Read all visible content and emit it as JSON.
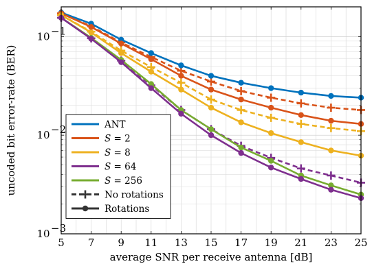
{
  "chart_data": {
    "type": "line",
    "xlabel": "average SNR per receive antenna [dB]",
    "ylabel": "uncoded bit error-rate (BER)",
    "x": [
      5,
      7,
      9,
      11,
      13,
      15,
      17,
      19,
      21,
      23,
      25
    ],
    "x_ticks": [
      "5",
      "7",
      "9",
      "11",
      "13",
      "15",
      "17",
      "19",
      "21",
      "23",
      "25"
    ],
    "xlim": [
      5,
      25
    ],
    "ylim": [
      0.001,
      0.2
    ],
    "yscale": "log",
    "y_ticks": [
      {
        "value": 0.1,
        "base": "10",
        "exp": "−1"
      },
      {
        "value": 0.01,
        "base": "10",
        "exp": "−2"
      },
      {
        "value": 0.001,
        "base": "10",
        "exp": "−3"
      }
    ],
    "grid": true,
    "legend_position": "bottom-left",
    "series": [
      {
        "name": "ANT",
        "color": "#0072bd",
        "style": "solid",
        "marker": "circle",
        "values": [
          0.175,
          0.135,
          0.093,
          0.068,
          0.051,
          0.04,
          0.034,
          0.03,
          0.027,
          0.025,
          0.024
        ]
      },
      {
        "name": "S = 2",
        "color": "#d95319",
        "style": "solid",
        "marker": "circle",
        "values": [
          0.172,
          0.125,
          0.085,
          0.059,
          0.04,
          0.029,
          0.023,
          0.019,
          0.016,
          0.014,
          0.013
        ]
      },
      {
        "name": "S = 2",
        "color": "#d95319",
        "style": "dashed",
        "marker": "plus",
        "values": [
          0.172,
          0.127,
          0.087,
          0.062,
          0.045,
          0.035,
          0.028,
          0.024,
          0.021,
          0.019,
          0.018
        ]
      },
      {
        "name": "S = 8",
        "color": "#edb120",
        "style": "solid",
        "marker": "circle",
        "values": [
          0.165,
          0.11,
          0.068,
          0.044,
          0.029,
          0.019,
          0.0135,
          0.0105,
          0.0085,
          0.007,
          0.0062
        ]
      },
      {
        "name": "S = 8",
        "color": "#edb120",
        "style": "dashed",
        "marker": "plus",
        "values": [
          0.165,
          0.112,
          0.072,
          0.049,
          0.034,
          0.023,
          0.018,
          0.015,
          0.013,
          0.0118,
          0.011
        ]
      },
      {
        "name": "S = 64",
        "color": "#7e2f8e",
        "style": "solid",
        "marker": "circle",
        "values": [
          0.155,
          0.095,
          0.055,
          0.03,
          0.0165,
          0.01,
          0.0066,
          0.0047,
          0.0036,
          0.0028,
          0.0023
        ]
      },
      {
        "name": "S = 64",
        "color": "#7e2f8e",
        "style": "dashed",
        "marker": "plus",
        "values": [
          0.155,
          0.096,
          0.057,
          0.032,
          0.018,
          0.0115,
          0.0078,
          0.0059,
          0.0046,
          0.0039,
          0.0033
        ]
      },
      {
        "name": "S = 256",
        "color": "#77ac30",
        "style": "solid",
        "marker": "circle",
        "values": [
          0.155,
          0.097,
          0.058,
          0.033,
          0.018,
          0.0115,
          0.0075,
          0.0055,
          0.0039,
          0.0031,
          0.0025
        ]
      }
    ],
    "legend": [
      {
        "prefix": "",
        "var": "",
        "value": "ANT",
        "color": "#0072bd",
        "style": "solid",
        "marker": "none"
      },
      {
        "prefix": "",
        "var": "S",
        "value": " = 2",
        "color": "#d95319",
        "style": "solid",
        "marker": "none"
      },
      {
        "prefix": "",
        "var": "S",
        "value": " = 8",
        "color": "#edb120",
        "style": "solid",
        "marker": "none"
      },
      {
        "prefix": "",
        "var": "S",
        "value": " = 64",
        "color": "#7e2f8e",
        "style": "solid",
        "marker": "none"
      },
      {
        "prefix": "",
        "var": "S",
        "value": " = 256",
        "color": "#77ac30",
        "style": "solid",
        "marker": "none"
      },
      {
        "prefix": "",
        "var": "",
        "value": "No rotations",
        "color": "#333333",
        "style": "dashed",
        "marker": "plus"
      },
      {
        "prefix": "",
        "var": "",
        "value": "Rotations",
        "color": "#333333",
        "style": "solid",
        "marker": "circle"
      }
    ]
  }
}
